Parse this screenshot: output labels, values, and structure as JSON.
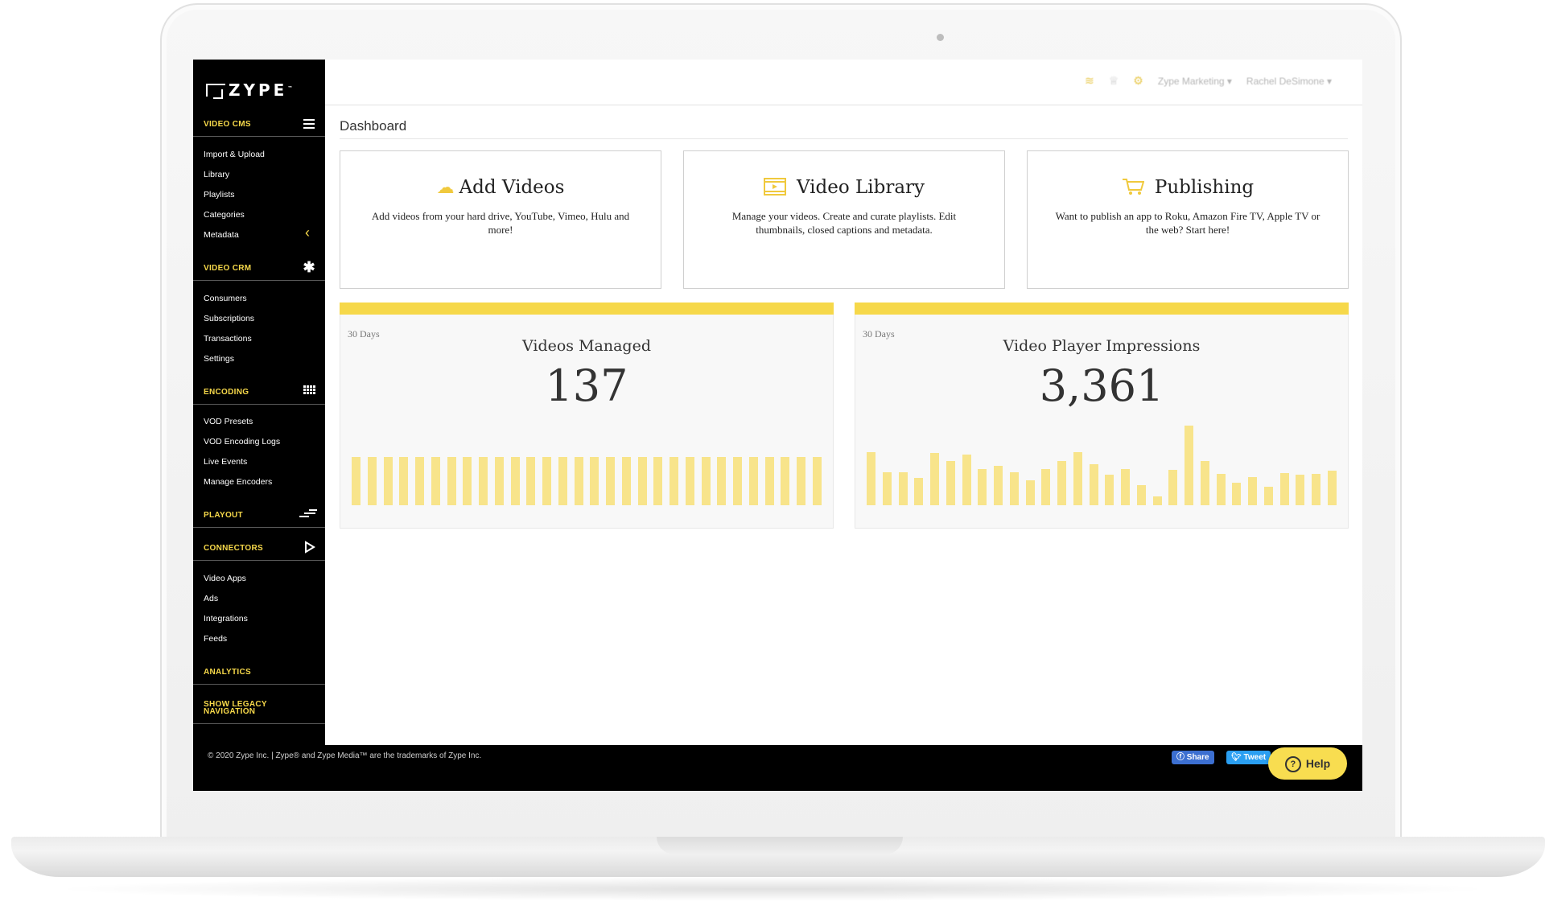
{
  "brand": {
    "logo_text": "ZYPE",
    "logo_tm": "™"
  },
  "sidebar": {
    "sections": [
      {
        "label": "VIDEO CMS",
        "icon": "hamburger-icon",
        "items": [
          "Import & Upload",
          "Library",
          "Playlists",
          "Categories",
          "Metadata"
        ]
      },
      {
        "label": "VIDEO CRM",
        "icon": "asterisk-icon",
        "items": [
          "Consumers",
          "Subscriptions",
          "Transactions",
          "Settings"
        ]
      },
      {
        "label": "ENCODING",
        "icon": "grid-icon",
        "items": [
          "VOD Presets",
          "VOD Encoding Logs",
          "Live Events",
          "Manage Encoders"
        ]
      },
      {
        "label": "PLAYOUT",
        "icon": "stairs-icon",
        "items": []
      },
      {
        "label": "CONNECTORS",
        "icon": "play-icon",
        "items": [
          "Video Apps",
          "Ads",
          "Integrations",
          "Feeds"
        ]
      },
      {
        "label": "ANALYTICS",
        "items": []
      },
      {
        "label": "SHOW LEGACY NAVIGATION",
        "items": []
      }
    ],
    "collapse_chevron": "‹"
  },
  "topbar": {
    "account": "Zype Marketing",
    "user": "Rachel DeSimone"
  },
  "page": {
    "title": "Dashboard"
  },
  "cards": [
    {
      "title": "Add Videos",
      "icon": "cloud-upload-icon",
      "desc": "Add videos from your hard drive, YouTube, Vimeo, Hulu and more!"
    },
    {
      "title": "Video Library",
      "icon": "film-icon",
      "desc": "Manage your videos. Create and curate playlists. Edit thumbnails, closed captions and metadata."
    },
    {
      "title": "Publishing",
      "icon": "cart-icon",
      "desc": "Want to publish an app to Roku, Amazon Fire TV, Apple TV or the web? Start here!"
    }
  ],
  "stats": [
    {
      "period": "30 Days",
      "title": "Videos Managed",
      "value": "137",
      "bars": [
        48,
        48,
        48,
        48,
        48,
        48,
        48,
        48,
        48,
        48,
        48,
        48,
        48,
        48,
        48,
        48,
        48,
        48,
        48,
        48,
        48,
        48,
        48,
        48,
        48,
        48,
        48,
        48,
        48,
        48
      ]
    },
    {
      "period": "30 Days",
      "title": "Video Player Impressions",
      "value": "3,361",
      "bars": [
        53,
        33,
        33,
        27,
        52,
        44,
        50,
        36,
        39,
        33,
        25,
        36,
        44,
        53,
        41,
        30,
        36,
        20,
        9,
        35,
        79,
        44,
        31,
        22,
        28,
        18,
        32,
        30,
        31,
        34
      ]
    }
  ],
  "footer": {
    "copyright": "© 2020 Zype Inc. | Zype® and Zype Media™ are the trademarks of Zype Inc.",
    "share": "Share",
    "tweet": "Tweet",
    "help": "Help"
  },
  "colors": {
    "accent": "#f6d84a",
    "bar": "#f8e48b",
    "sidebar": "#000000"
  }
}
